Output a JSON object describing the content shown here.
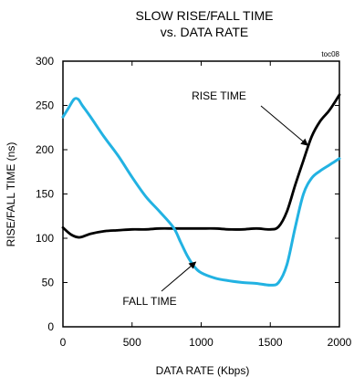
{
  "chart_data": {
    "type": "line",
    "title_line1": "SLOW RISE/FALL TIME",
    "title_line2": "vs. DATA RATE",
    "figure_tag": "toc08",
    "xlabel": "DATA RATE (Kbps)",
    "ylabel": "RISE/FALL TIME (ns)",
    "xlim": [
      0,
      2000
    ],
    "ylim": [
      0,
      300
    ],
    "xticks": [
      0,
      500,
      1000,
      1500,
      2000
    ],
    "yticks": [
      0,
      50,
      100,
      150,
      200,
      250,
      300
    ],
    "grid": false,
    "series": [
      {
        "name": "RISE TIME",
        "color": "#000000",
        "x": [
          0,
          60,
          120,
          200,
          300,
          400,
          500,
          600,
          700,
          800,
          900,
          1000,
          1100,
          1200,
          1300,
          1400,
          1500,
          1560,
          1620,
          1680,
          1740,
          1800,
          1860,
          1920,
          1960,
          2000
        ],
        "y": [
          112,
          104,
          101,
          105,
          108,
          109,
          110,
          110,
          111,
          111,
          111,
          111,
          111,
          110,
          110,
          111,
          110,
          113,
          130,
          160,
          188,
          215,
          232,
          243,
          252,
          262
        ]
      },
      {
        "name": "FALL TIME",
        "color": "#22b2e2",
        "x": [
          0,
          40,
          80,
          110,
          140,
          200,
          300,
          400,
          500,
          600,
          700,
          800,
          850,
          900,
          950,
          1000,
          1100,
          1200,
          1300,
          1400,
          1500,
          1560,
          1620,
          1680,
          1740,
          1800,
          1860,
          1920,
          1960,
          2000
        ],
        "y": [
          237,
          247,
          257,
          257,
          250,
          237,
          214,
          193,
          169,
          147,
          130,
          112,
          96,
          80,
          68,
          61,
          55,
          52,
          50,
          49,
          47,
          50,
          70,
          112,
          150,
          168,
          176,
          182,
          186,
          190
        ]
      }
    ],
    "annotations": [
      {
        "text": "RISE TIME",
        "series": 0,
        "x": 1770,
        "y": 205
      },
      {
        "text": "FALL TIME",
        "series": 1,
        "x": 960,
        "y": 73
      }
    ]
  }
}
